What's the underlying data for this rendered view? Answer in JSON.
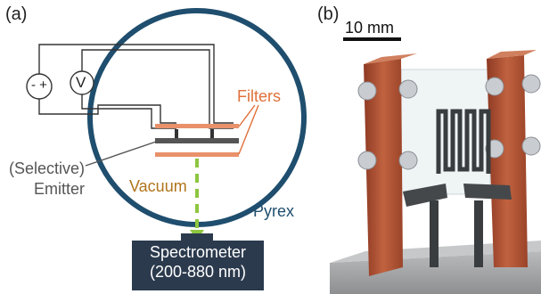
{
  "panel_a": {
    "letter": "(a)",
    "source_sign": "- +",
    "voltmeter": "V",
    "filters_label": "Filters",
    "emitter_label_line1": "(Selective)",
    "emitter_label_line2": "Emitter",
    "vacuum_label": "Vacuum",
    "pyrex_label": "Pyrex",
    "spectrometer_line1": "Spectrometer",
    "spectrometer_line2": "(200-880 nm)",
    "colors": {
      "chamber": "#1f4e6e",
      "filters": "#e8916a",
      "filters_text": "#e0703a",
      "vacuum_text": "#b0741a",
      "emitter": "#555555",
      "beam": "#8dc63f",
      "spectrometer": "#2b3a4d"
    }
  },
  "panel_b": {
    "letter": "(b)",
    "scale_label": "10 mm",
    "colors": {
      "copper": "#b5553a",
      "bolts": "#c9cdd2",
      "base": "#9a9c9e"
    }
  }
}
